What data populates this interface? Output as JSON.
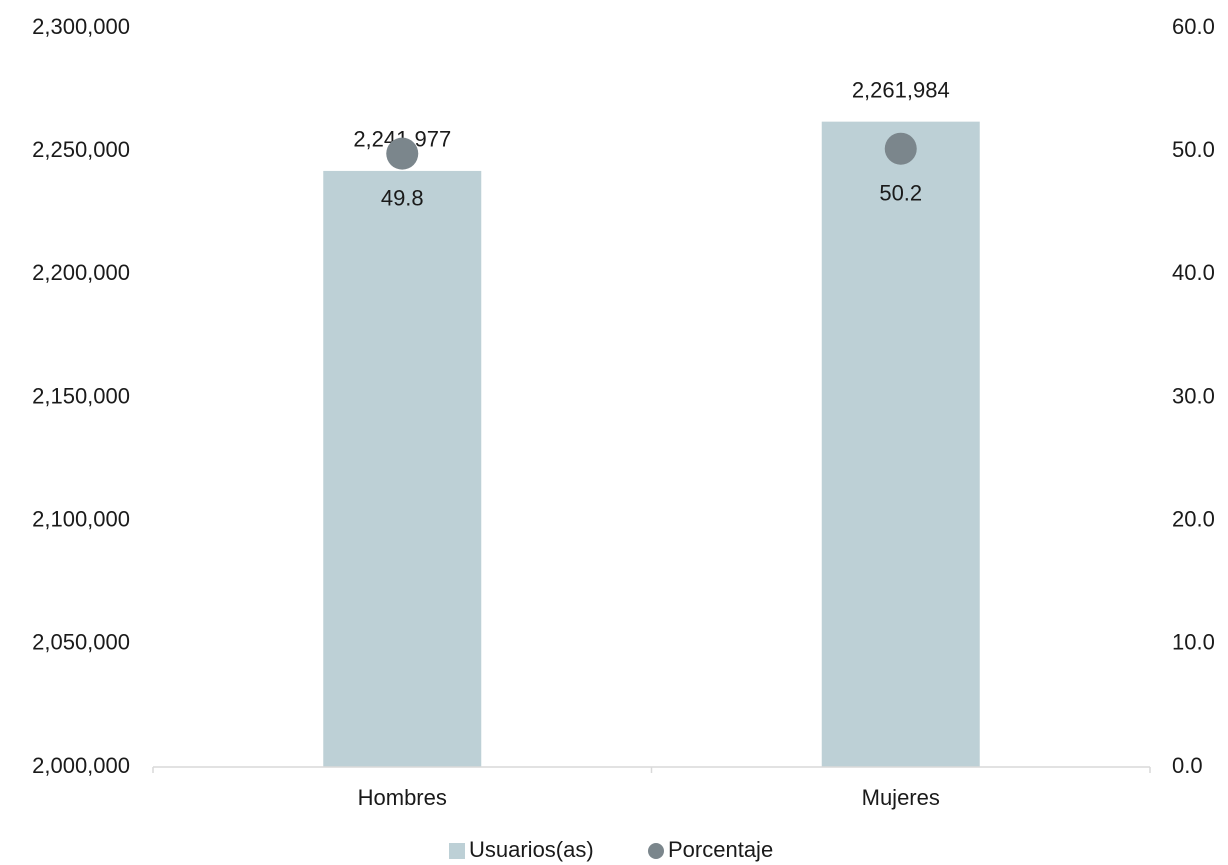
{
  "chart_data": {
    "type": "bar",
    "categories": [
      "Hombres",
      "Mujeres"
    ],
    "series": [
      {
        "name": "Usuarios(as)",
        "kind": "bar",
        "axis": "left",
        "values": [
          2241977,
          2261984
        ],
        "labels": [
          "2,241,977",
          "2,261,984"
        ]
      },
      {
        "name": "Porcentaje",
        "kind": "scatter",
        "axis": "right",
        "values": [
          49.8,
          50.2
        ],
        "labels": [
          "49.8",
          "50.2"
        ]
      }
    ],
    "left_axis": {
      "ylim": [
        2000000,
        2300000
      ],
      "ticks": [
        2000000,
        2050000,
        2100000,
        2150000,
        2200000,
        2250000,
        2300000
      ],
      "tick_labels": [
        "2,000,000",
        "2,050,000",
        "2,100,000",
        "2,150,000",
        "2,200,000",
        "2,250,000",
        "2,300,000"
      ]
    },
    "right_axis": {
      "ylim": [
        0,
        60
      ],
      "ticks": [
        0,
        10,
        20,
        30,
        40,
        50,
        60
      ],
      "tick_labels": [
        "0.0",
        "10.0",
        "20.0",
        "30.0",
        "40.0",
        "50.0",
        "60.0"
      ]
    },
    "grid": false,
    "legend": {
      "position": "bottom",
      "items": [
        "Usuarios(as)",
        "Porcentaje"
      ]
    },
    "colors": {
      "bar": "#bdd0d6",
      "point": "#7b868c",
      "axis": "#d9d9d9",
      "text": "#1a1a1a"
    }
  }
}
